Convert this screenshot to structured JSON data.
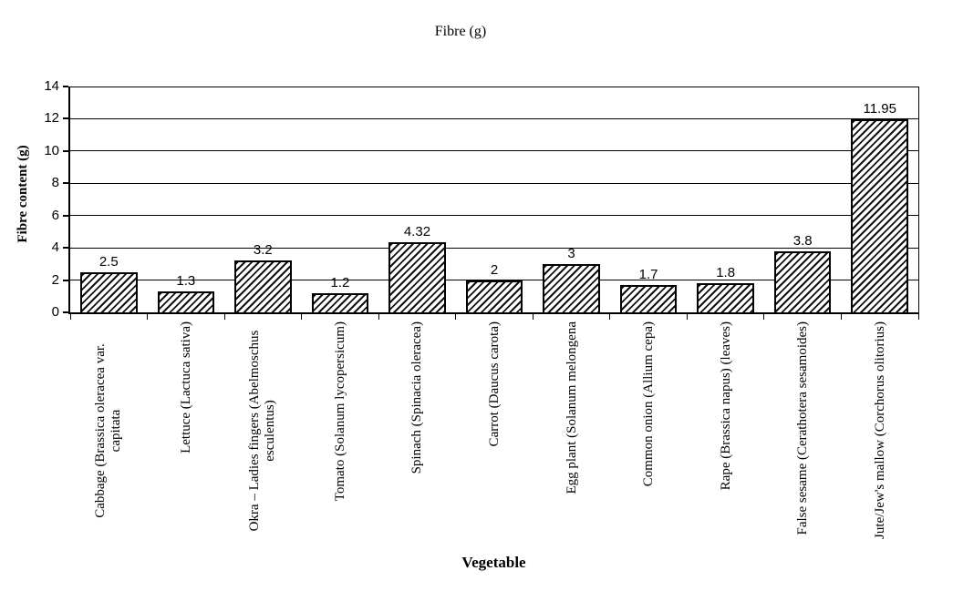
{
  "chart_data": {
    "type": "bar",
    "title": "Fibre (g)",
    "xlabel": "Vegetable",
    "ylabel": "Fibre content (g)",
    "ylim": [
      0,
      14
    ],
    "yticks": [
      0,
      2,
      4,
      6,
      8,
      10,
      12,
      14
    ],
    "grid": "horizontal",
    "legend": "none",
    "data_labels_visible": true,
    "bar_style": "diagonal-hatch",
    "categories": [
      "Cabbage (Brassica oleracea var. capitata",
      "Lettuce (Lactuca sativa)",
      "Okra – Ladies fingers (Abelmoschus esculentus)",
      "Tomato (Solanum lycopersicum)",
      "Spinach (Spinacia oleracea)",
      "Carrot (Daucus carota)",
      "Egg plant (Solanum melongena",
      "Common onion (Allium cepa)",
      "Rape (Brassica napus) (leaves)",
      "False sesame (Cerathotera sesamoides)",
      "Jute/Jew's mallow (Corchorus olitorius)"
    ],
    "values": [
      2.5,
      1.3,
      3.2,
      1.2,
      4.32,
      2,
      3,
      1.7,
      1.8,
      3.8,
      11.95
    ],
    "value_labels": [
      "2.5",
      "1.3",
      "3.2",
      "1.2",
      "4.32",
      "2",
      "3",
      "1.7",
      "1.8",
      "3.8",
      "11.95"
    ],
    "colors": {
      "background": "#ffffff",
      "axis": "#000000",
      "grid": "#000000",
      "bar_fill": "#ffffff",
      "bar_hatch": "#111111",
      "text": "#000000"
    }
  }
}
